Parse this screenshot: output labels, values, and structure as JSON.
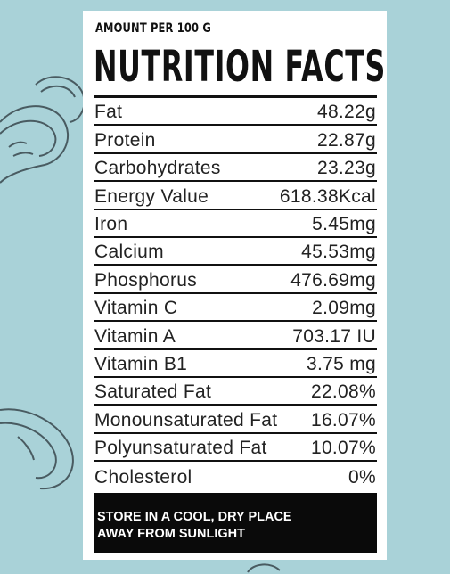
{
  "header": {
    "amount_label": "AMOUNT PER 100 G",
    "title": "NUTRITION FACTS"
  },
  "nutrients": [
    {
      "name": "Fat",
      "value": "48.22g"
    },
    {
      "name": "Protein",
      "value": "22.87g"
    },
    {
      "name": "Carbohydrates",
      "value": "23.23g"
    },
    {
      "name": "Energy Value",
      "value": "618.38Kcal"
    },
    {
      "name": "Iron",
      "value": "5.45mg"
    },
    {
      "name": "Calcium",
      "value": "45.53mg"
    },
    {
      "name": "Phosphorus",
      "value": "476.69mg"
    },
    {
      "name": "Vitamin C",
      "value": "2.09mg"
    },
    {
      "name": "Vitamin A",
      "value": "703.17 IU"
    },
    {
      "name": "Vitamin B1",
      "value": "3.75 mg"
    },
    {
      "name": "Saturated Fat",
      "value": "22.08%"
    },
    {
      "name": "Monounsaturated Fat",
      "value": "16.07%"
    },
    {
      "name": "Polyunsaturated Fat",
      "value": "10.07%"
    },
    {
      "name": "Cholesterol",
      "value": "0%"
    }
  ],
  "footer": {
    "line1": "STORE IN A COOL, DRY PLACE",
    "line2": "AWAY FROM SUNLIGHT"
  },
  "colors": {
    "background": "#a9d2d8",
    "card": "#ffffff",
    "ink": "#111111",
    "footer_bg": "#0a0a0a",
    "footer_text": "#ffffff"
  },
  "icons": [
    "cashew-illustration-top",
    "cashew-illustration-bottom",
    "cashew-illustration-small"
  ]
}
